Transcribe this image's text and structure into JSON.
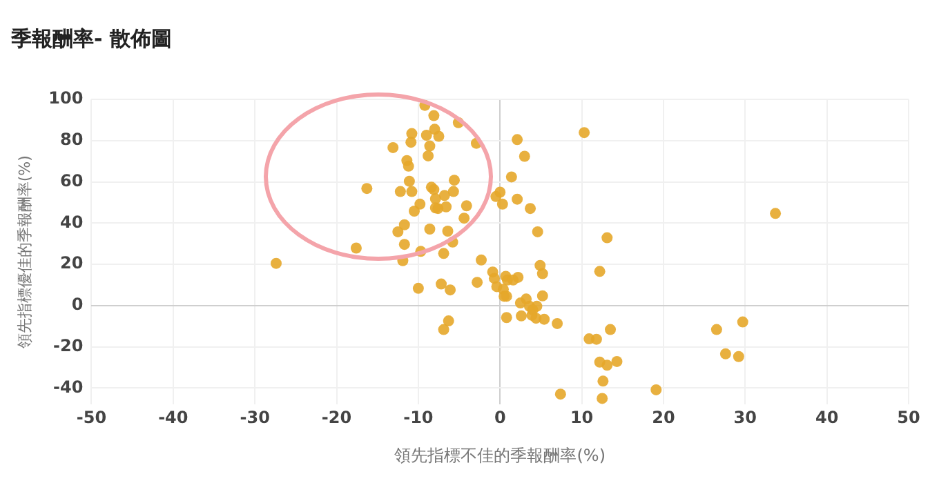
{
  "chart_data": {
    "type": "scatter",
    "title": "季報酬率- 散佈圖",
    "xlabel": "領先指標不佳的季報酬率(%)",
    "ylabel": "領先指標優佳的季報酬率(%)",
    "xlim": [
      -50,
      50
    ],
    "xticks": [
      -50,
      -40,
      -30,
      -20,
      -10,
      0,
      10,
      20,
      30,
      40,
      50
    ],
    "ylim": [
      -48,
      100
    ],
    "yticks": [
      -40,
      -20,
      0,
      20,
      40,
      60,
      80,
      100
    ],
    "grid": true,
    "legend": false,
    "marker": "circle",
    "series": [
      {
        "color": "#e5a72a",
        "x": [
          -9.2,
          -8.1,
          -5.1,
          -8.0,
          -9.0,
          -7.5,
          -10.8,
          -10.9,
          -2.9,
          -13.1,
          -8.6,
          -8.8,
          -11.4,
          -11.2,
          -11.1,
          -16.3,
          -12.2,
          -10.8,
          -8.4,
          -8.1,
          -5.6,
          -5.7,
          -6.8,
          -7.9,
          -9.8,
          -10.5,
          -7.9,
          -7.6,
          -6.6,
          -4.1,
          -4.4,
          -8.6,
          -6.4,
          -12.5,
          -11.7,
          -11.7,
          -5.8,
          -9.7,
          -6.9,
          -17.6,
          -11.9,
          -27.4,
          -2.3,
          -10.0,
          -7.2,
          -6.1,
          -2.8,
          -6.3,
          -6.9,
          10.3,
          2.1,
          3.0,
          1.4,
          0.0,
          -0.5,
          0.3,
          2.1,
          3.7,
          4.6,
          13.1,
          -0.9,
          -0.7,
          -0.4,
          0.7,
          0.9,
          1.6,
          2.2,
          4.9,
          5.2,
          12.2,
          0.4,
          0.5,
          0.8,
          5.2,
          3.2,
          2.5,
          3.6,
          4.5,
          4.0,
          0.8,
          2.6,
          3.9,
          4.4,
          5.4,
          7.0,
          13.5,
          10.9,
          11.8,
          12.2,
          13.1,
          14.3,
          12.6,
          12.5,
          7.4,
          19.1,
          26.5,
          29.7,
          27.6,
          29.2,
          33.7
        ],
        "values": [
          97.1,
          92.1,
          88.7,
          85.5,
          82.6,
          82.1,
          83.4,
          79.2,
          78.7,
          76.6,
          77.4,
          72.6,
          70.3,
          67.6,
          60.3,
          56.8,
          55.3,
          55.3,
          57.4,
          56.3,
          60.8,
          55.3,
          53.4,
          51.8,
          49.2,
          45.8,
          47.4,
          47.1,
          47.9,
          48.4,
          42.4,
          37.1,
          36.1,
          35.8,
          39.2,
          29.7,
          30.8,
          26.3,
          25.3,
          27.9,
          21.8,
          20.5,
          22.1,
          8.4,
          10.5,
          7.6,
          11.3,
          -7.4,
          -11.6,
          83.9,
          80.5,
          72.4,
          62.4,
          55.0,
          52.9,
          49.2,
          51.6,
          47.1,
          35.8,
          32.9,
          16.3,
          13.2,
          9.2,
          14.2,
          12.4,
          12.4,
          13.7,
          19.5,
          15.5,
          16.6,
          7.9,
          4.5,
          4.5,
          4.7,
          3.2,
          1.3,
          -0.3,
          -0.3,
          -2.1,
          -5.8,
          -5.0,
          -4.7,
          -6.1,
          -6.6,
          -8.7,
          -11.6,
          -16.1,
          -16.3,
          -27.4,
          -28.9,
          -27.1,
          -36.6,
          -45.0,
          -42.9,
          -40.8,
          -11.6,
          -7.9,
          -23.4,
          -24.7,
          44.7
        ]
      }
    ]
  }
}
